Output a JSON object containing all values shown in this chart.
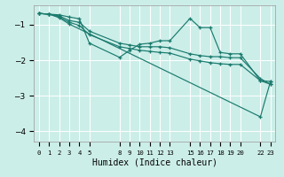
{
  "xlabel": "Humidex (Indice chaleur)",
  "bg_color": "#cceee8",
  "grid_color": "#ffffff",
  "line_color": "#1a7a6e",
  "ylim": [
    -4.3,
    -0.45
  ],
  "yticks": [
    -4,
    -3,
    -2,
    -1
  ],
  "xlim": [
    -0.5,
    23.5
  ],
  "xtick_positions": [
    0,
    1,
    2,
    3,
    4,
    5,
    8,
    9,
    10,
    11,
    12,
    13,
    15,
    16,
    17,
    18,
    19,
    20,
    22,
    23
  ],
  "xtick_labels": [
    "0",
    "1",
    "2",
    "3",
    "4",
    "5",
    "8",
    "9",
    "10",
    "11",
    "12",
    "13",
    "15",
    "16",
    "17",
    "18",
    "19",
    "20",
    "22",
    "23"
  ],
  "lines": [
    {
      "x": [
        0,
        1,
        2,
        3,
        4,
        5,
        8,
        9,
        10,
        11,
        12,
        13,
        15,
        16,
        17,
        18,
        19,
        20,
        22,
        23
      ],
      "y": [
        -0.68,
        -0.7,
        -0.72,
        -0.78,
        -0.83,
        -1.52,
        -1.92,
        -1.72,
        -1.55,
        -1.52,
        -1.45,
        -1.45,
        -0.82,
        -1.08,
        -1.08,
        -1.78,
        -1.82,
        -1.82,
        -2.58,
        -2.68
      ]
    },
    {
      "x": [
        0,
        1,
        2,
        3,
        4,
        5,
        8,
        9,
        10,
        11,
        12,
        13,
        15,
        16,
        17,
        18,
        19,
        20,
        22,
        23
      ],
      "y": [
        -0.68,
        -0.7,
        -0.75,
        -0.88,
        -0.93,
        -1.18,
        -1.52,
        -1.57,
        -1.62,
        -1.62,
        -1.62,
        -1.65,
        -1.82,
        -1.87,
        -1.9,
        -1.9,
        -1.93,
        -1.93,
        -2.52,
        -2.68
      ]
    },
    {
      "x": [
        0,
        1,
        2,
        3,
        4,
        5,
        8,
        9,
        10,
        11,
        12,
        13,
        15,
        16,
        17,
        18,
        19,
        20,
        22,
        23
      ],
      "y": [
        -0.68,
        -0.7,
        -0.78,
        -0.93,
        -1.02,
        -1.28,
        -1.62,
        -1.67,
        -1.72,
        -1.75,
        -1.78,
        -1.8,
        -1.97,
        -2.02,
        -2.07,
        -2.1,
        -2.12,
        -2.12,
        -2.58,
        -2.6
      ]
    },
    {
      "x": [
        0,
        1,
        2,
        3,
        22,
        23
      ],
      "y": [
        -0.68,
        -0.7,
        -0.8,
        -0.98,
        -3.6,
        -2.6
      ]
    }
  ]
}
